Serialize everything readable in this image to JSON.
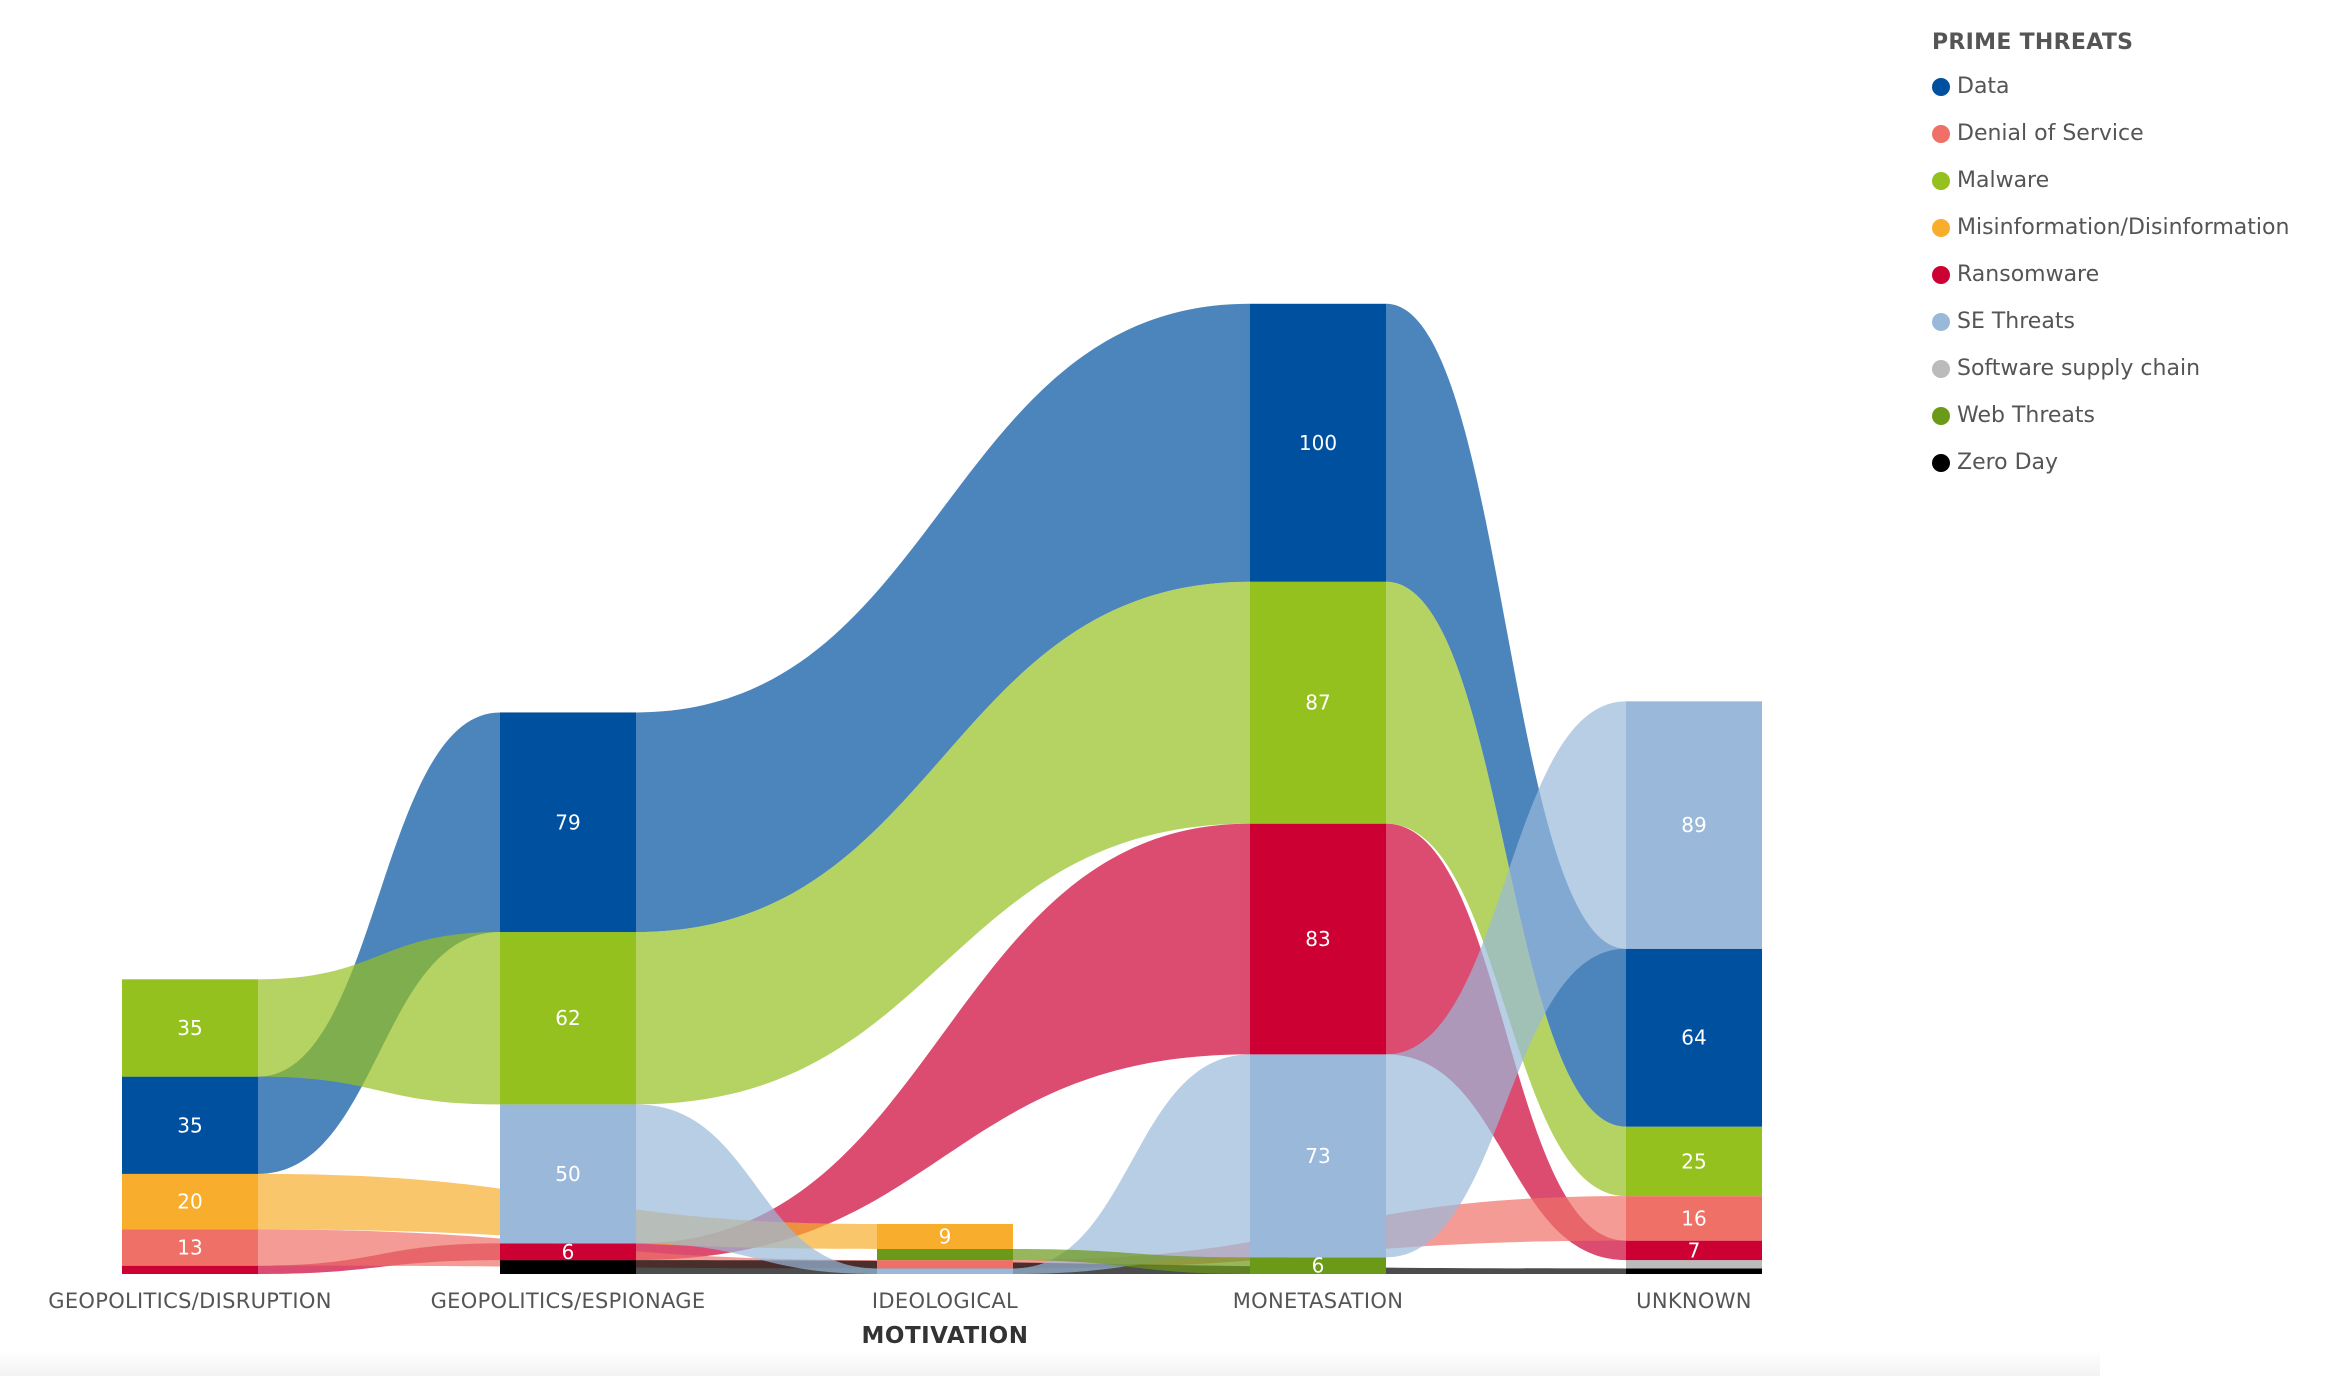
{
  "chart_data": {
    "type": "sankey-ribbon",
    "axis_title": "MOTIVATION",
    "legend": {
      "title": "PRIME THREATS",
      "items": [
        {
          "name": "Data",
          "color": "#0050a0"
        },
        {
          "name": "Denial of Service",
          "color": "#ee7066"
        },
        {
          "name": "Malware",
          "color": "#95c11f"
        },
        {
          "name": "Misinformation/Disinformation",
          "color": "#f8ae2c"
        },
        {
          "name": "Ransomware",
          "color": "#cc0033"
        },
        {
          "name": "SE Threats",
          "color": "#9ab9da"
        },
        {
          "name": "Software supply chain",
          "color": "#bbbbbb"
        },
        {
          "name": "Web Threats",
          "color": "#6b9918"
        },
        {
          "name": "Zero Day",
          "color": "#000000"
        }
      ]
    },
    "categories": [
      "GEOPOLITICS/DISRUPTION",
      "GEOPOLITICS/ESPIONAGE",
      "IDEOLOGICAL",
      "MONETASATION",
      "UNKNOWN"
    ],
    "stacks": [
      [
        {
          "series": "Ransomware",
          "value": 3
        },
        {
          "series": "Denial of Service",
          "value": 13,
          "label": "13"
        },
        {
          "series": "Misinformation/Disinformation",
          "value": 20,
          "label": "20"
        },
        {
          "series": "Data",
          "value": 35,
          "label": "35"
        },
        {
          "series": "Malware",
          "value": 35,
          "label": "35"
        }
      ],
      [
        {
          "series": "Zero Day",
          "value": 5
        },
        {
          "series": "Ransomware",
          "value": 6,
          "label": "6"
        },
        {
          "series": "SE Threats",
          "value": 50,
          "label": "50"
        },
        {
          "series": "Malware",
          "value": 62,
          "label": "62"
        },
        {
          "series": "Data",
          "value": 79,
          "label": "79"
        }
      ],
      [
        {
          "series": "SE Threats",
          "value": 2
        },
        {
          "series": "Denial of Service",
          "value": 3
        },
        {
          "series": "Web Threats",
          "value": 4
        },
        {
          "series": "Misinformation/Disinformation",
          "value": 9,
          "label": "9"
        }
      ],
      [
        {
          "series": "Web Threats",
          "value": 6,
          "label": "6"
        },
        {
          "series": "SE Threats",
          "value": 73,
          "label": "73"
        },
        {
          "series": "Ransomware",
          "value": 83,
          "label": "83"
        },
        {
          "series": "Malware",
          "value": 87,
          "label": "87"
        },
        {
          "series": "Data",
          "value": 100,
          "label": "100"
        }
      ],
      [
        {
          "series": "Zero Day",
          "value": 2
        },
        {
          "series": "Software supply chain",
          "value": 3
        },
        {
          "series": "Ransomware",
          "value": 7,
          "label": "7"
        },
        {
          "series": "Denial of Service",
          "value": 16,
          "label": "16"
        },
        {
          "series": "Malware",
          "value": 25,
          "label": "25"
        },
        {
          "series": "Data",
          "value": 64,
          "label": "64"
        },
        {
          "series": "SE Threats",
          "value": 89,
          "label": "89"
        }
      ]
    ]
  }
}
